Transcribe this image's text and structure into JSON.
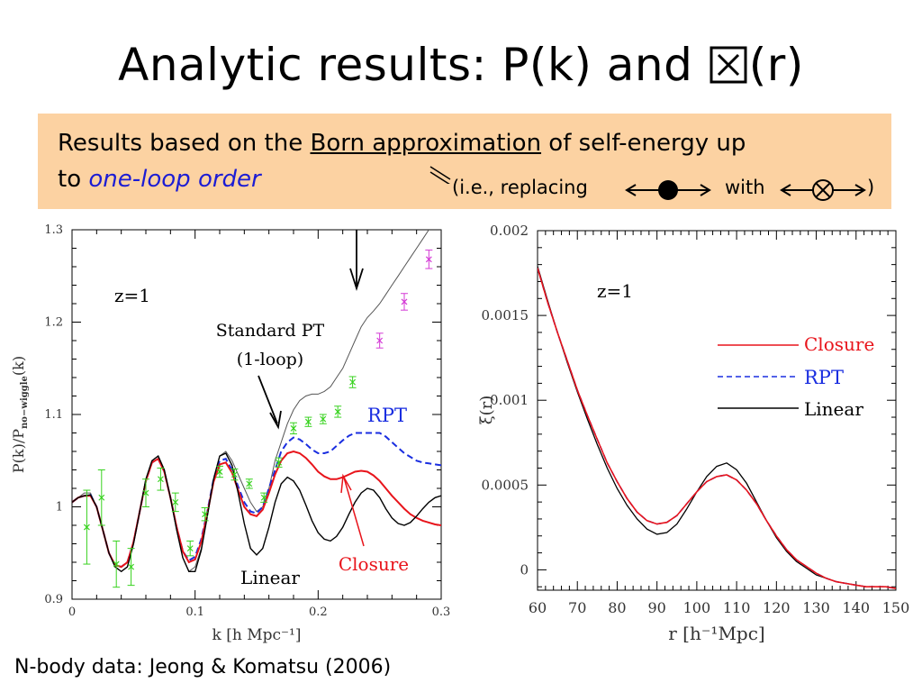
{
  "slide": {
    "title_pre": "Analytic results: P(k) and ",
    "title_post": "(r)",
    "banner": {
      "line1_a": "Results based on the ",
      "line1_underlined": "Born approximation",
      "line1_b": " of self-energy up",
      "line2_a": "to ",
      "line2_italic": "one-loop order",
      "note_a": "(i.e., replacing",
      "note_b": "with",
      "note_c": ")"
    },
    "footer": "N-body data: Jeong & Komatsu (2006)"
  },
  "colors": {
    "closure": "#e8141b",
    "rpt": "#1a2ee0",
    "linear": "#000000",
    "nbody_green": "#37d21e",
    "nbody_magenta": "#d43ad6",
    "banner_bg": "#fcd2a2",
    "italic_blue": "#1c1cd4"
  },
  "chart_data": [
    {
      "type": "line",
      "xlabel": "k [h Mpc⁻¹]",
      "ylabel": "P(k)/P",
      "ylabel_sub": "no−wiggle",
      "ylabel_tail": "(k)",
      "xlim": [
        0,
        0.3
      ],
      "ylim": [
        0.9,
        1.3
      ],
      "xticks": [
        0,
        0.1,
        0.2,
        0.3
      ],
      "xtick_labels": [
        "0",
        "0.1",
        "0.2",
        "0.3"
      ],
      "yticks": [
        0.9,
        1.0,
        1.1,
        1.2,
        1.3
      ],
      "ytick_labels": [
        "0.9",
        "1",
        "1.1",
        "1.2",
        "1.3"
      ],
      "annotations": {
        "redshift": "z=1",
        "standard_pt_1": "Standard PT",
        "standard_pt_2": "(1-loop)",
        "rpt": "RPT",
        "closure": "Closure",
        "linear": "Linear"
      },
      "series": [
        {
          "name": "Standard PT (1-loop)",
          "color": "#555555",
          "style": "solid",
          "x": [
            0,
            0.005,
            0.01,
            0.015,
            0.02,
            0.025,
            0.03,
            0.035,
            0.04,
            0.045,
            0.05,
            0.055,
            0.06,
            0.065,
            0.07,
            0.075,
            0.08,
            0.085,
            0.09,
            0.095,
            0.1,
            0.105,
            0.11,
            0.115,
            0.12,
            0.125,
            0.13,
            0.135,
            0.14,
            0.145,
            0.15,
            0.155,
            0.16,
            0.165,
            0.17,
            0.175,
            0.18,
            0.185,
            0.19,
            0.195,
            0.2,
            0.205,
            0.21,
            0.215,
            0.22,
            0.225,
            0.23,
            0.235,
            0.24,
            0.245,
            0.25,
            0.255,
            0.26,
            0.265,
            0.27,
            0.275,
            0.28,
            0.285,
            0.29,
            0.295,
            0.3
          ],
          "y": [
            1.005,
            1.01,
            1.015,
            1.015,
            1.0,
            0.975,
            0.95,
            0.935,
            0.93,
            0.935,
            0.96,
            0.995,
            1.03,
            1.05,
            1.055,
            1.04,
            1.01,
            0.975,
            0.945,
            0.93,
            0.935,
            0.955,
            0.99,
            1.03,
            1.055,
            1.06,
            1.05,
            1.035,
            1.02,
            1.005,
            0.995,
            1.0,
            1.02,
            1.05,
            1.07,
            1.09,
            1.105,
            1.115,
            1.12,
            1.122,
            1.122,
            1.125,
            1.13,
            1.14,
            1.15,
            1.165,
            1.18,
            1.195,
            1.205,
            1.212,
            1.22,
            1.23,
            1.24,
            1.25,
            1.26,
            1.27,
            1.28,
            1.29,
            1.3,
            1.305,
            1.3
          ]
        },
        {
          "name": "RPT",
          "color": "#1a2ee0",
          "style": "dashed",
          "x": [
            0,
            0.005,
            0.01,
            0.015,
            0.02,
            0.025,
            0.03,
            0.035,
            0.04,
            0.045,
            0.05,
            0.055,
            0.06,
            0.065,
            0.07,
            0.075,
            0.08,
            0.085,
            0.09,
            0.095,
            0.1,
            0.105,
            0.11,
            0.115,
            0.12,
            0.125,
            0.13,
            0.135,
            0.14,
            0.145,
            0.15,
            0.155,
            0.16,
            0.165,
            0.17,
            0.175,
            0.18,
            0.185,
            0.19,
            0.195,
            0.2,
            0.205,
            0.21,
            0.215,
            0.22,
            0.225,
            0.23,
            0.235,
            0.24,
            0.245,
            0.25,
            0.255,
            0.26,
            0.265,
            0.27,
            0.275,
            0.28,
            0.285,
            0.29,
            0.295,
            0.3
          ],
          "y": [
            1.005,
            1.01,
            1.012,
            1.013,
            1.0,
            0.975,
            0.95,
            0.937,
            0.935,
            0.94,
            0.962,
            0.995,
            1.028,
            1.048,
            1.052,
            1.038,
            1.01,
            0.978,
            0.952,
            0.942,
            0.946,
            0.965,
            0.995,
            1.03,
            1.05,
            1.052,
            1.04,
            1.022,
            1.005,
            0.995,
            0.993,
            1.0,
            1.02,
            1.04,
            1.06,
            1.07,
            1.075,
            1.073,
            1.068,
            1.062,
            1.058,
            1.058,
            1.06,
            1.066,
            1.072,
            1.077,
            1.08,
            1.08,
            1.08,
            1.08,
            1.08,
            1.076,
            1.07,
            1.064,
            1.058,
            1.054,
            1.05,
            1.048,
            1.047,
            1.046,
            1.045
          ]
        },
        {
          "name": "Closure",
          "color": "#e8141b",
          "style": "solid",
          "x": [
            0,
            0.005,
            0.01,
            0.015,
            0.02,
            0.025,
            0.03,
            0.035,
            0.04,
            0.045,
            0.05,
            0.055,
            0.06,
            0.065,
            0.07,
            0.075,
            0.08,
            0.085,
            0.09,
            0.095,
            0.1,
            0.105,
            0.11,
            0.115,
            0.12,
            0.125,
            0.13,
            0.135,
            0.14,
            0.145,
            0.15,
            0.155,
            0.16,
            0.165,
            0.17,
            0.175,
            0.18,
            0.185,
            0.19,
            0.195,
            0.2,
            0.205,
            0.21,
            0.215,
            0.22,
            0.225,
            0.23,
            0.235,
            0.24,
            0.245,
            0.25,
            0.255,
            0.26,
            0.265,
            0.27,
            0.275,
            0.28,
            0.285,
            0.29,
            0.295,
            0.3
          ],
          "y": [
            1.005,
            1.01,
            1.012,
            1.012,
            1.0,
            0.975,
            0.95,
            0.937,
            0.935,
            0.94,
            0.962,
            0.995,
            1.028,
            1.048,
            1.052,
            1.038,
            1.01,
            0.978,
            0.952,
            0.94,
            0.943,
            0.962,
            0.993,
            1.027,
            1.046,
            1.048,
            1.037,
            1.018,
            1.0,
            0.992,
            0.99,
            0.997,
            1.015,
            1.035,
            1.05,
            1.058,
            1.06,
            1.058,
            1.053,
            1.046,
            1.038,
            1.033,
            1.03,
            1.03,
            1.032,
            1.035,
            1.038,
            1.039,
            1.038,
            1.034,
            1.028,
            1.02,
            1.012,
            1.005,
            0.998,
            0.992,
            0.988,
            0.985,
            0.983,
            0.981,
            0.98
          ]
        },
        {
          "name": "Linear",
          "color": "#000000",
          "style": "solid",
          "x": [
            0,
            0.005,
            0.01,
            0.015,
            0.02,
            0.025,
            0.03,
            0.035,
            0.04,
            0.045,
            0.05,
            0.055,
            0.06,
            0.065,
            0.07,
            0.075,
            0.08,
            0.085,
            0.09,
            0.095,
            0.1,
            0.105,
            0.11,
            0.115,
            0.12,
            0.125,
            0.13,
            0.135,
            0.14,
            0.145,
            0.15,
            0.155,
            0.16,
            0.165,
            0.17,
            0.175,
            0.18,
            0.185,
            0.19,
            0.195,
            0.2,
            0.205,
            0.21,
            0.215,
            0.22,
            0.225,
            0.23,
            0.235,
            0.24,
            0.245,
            0.25,
            0.255,
            0.26,
            0.265,
            0.27,
            0.275,
            0.28,
            0.285,
            0.29,
            0.295,
            0.3
          ],
          "y": [
            1.005,
            1.01,
            1.012,
            1.013,
            1.0,
            0.975,
            0.95,
            0.935,
            0.93,
            0.935,
            0.96,
            0.995,
            1.03,
            1.05,
            1.055,
            1.04,
            1.01,
            0.975,
            0.945,
            0.93,
            0.93,
            0.953,
            0.99,
            1.03,
            1.055,
            1.058,
            1.045,
            1.015,
            0.982,
            0.955,
            0.948,
            0.955,
            0.978,
            1.005,
            1.025,
            1.032,
            1.028,
            1.018,
            1.002,
            0.985,
            0.972,
            0.965,
            0.963,
            0.968,
            0.978,
            0.992,
            1.005,
            1.015,
            1.02,
            1.018,
            1.01,
            0.998,
            0.988,
            0.982,
            0.98,
            0.983,
            0.99,
            0.998,
            1.005,
            1.01,
            1.012
          ]
        }
      ],
      "nbody_points": {
        "name": "N-body data",
        "k": [
          0.012,
          0.024,
          0.036,
          0.048,
          0.06,
          0.072,
          0.084,
          0.096,
          0.108,
          0.12,
          0.132,
          0.144,
          0.156,
          0.168,
          0.18,
          0.192,
          0.204,
          0.216,
          0.228,
          0.25,
          0.27,
          0.29
        ],
        "value": [
          0.978,
          1.01,
          0.938,
          0.935,
          1.015,
          1.03,
          1.005,
          0.955,
          0.992,
          1.038,
          1.035,
          1.025,
          1.01,
          1.048,
          1.085,
          1.092,
          1.095,
          1.103,
          1.135,
          1.18,
          1.222,
          1.268
        ],
        "error": [
          0.04,
          0.03,
          0.025,
          0.02,
          0.015,
          0.012,
          0.01,
          0.008,
          0.007,
          0.006,
          0.006,
          0.005,
          0.005,
          0.005,
          0.006,
          0.005,
          0.005,
          0.006,
          0.006,
          0.008,
          0.009,
          0.01
        ],
        "color_switch_k": 0.24
      }
    },
    {
      "type": "line",
      "xlabel": "r [h⁻¹Mpc]",
      "ylabel": "ξ(r)",
      "xlim": [
        60,
        150
      ],
      "ylim": [
        -0.00012,
        0.002
      ],
      "xticks": [
        60,
        70,
        80,
        90,
        100,
        110,
        120,
        130,
        140,
        150
      ],
      "xtick_labels": [
        "60",
        "70",
        "80",
        "90",
        "100",
        "110",
        "120",
        "130",
        "140",
        "150"
      ],
      "yticks": [
        0,
        0.0005,
        0.001,
        0.0015,
        0.002
      ],
      "ytick_labels": [
        "0",
        "0.0005",
        "0.001",
        "0.0015",
        "0.002"
      ],
      "annotations": {
        "redshift": "z=1"
      },
      "legend": [
        {
          "label": "Closure",
          "color": "#e8141b",
          "style": "solid"
        },
        {
          "label": "RPT",
          "color": "#1a2ee0",
          "style": "dashed"
        },
        {
          "label": "Linear",
          "color": "#000000",
          "style": "solid"
        }
      ],
      "series": [
        {
          "name": "Closure",
          "color": "#e8141b",
          "style": "solid",
          "x": [
            60,
            62.5,
            65,
            67.5,
            70,
            72.5,
            75,
            77.5,
            80,
            82.5,
            85,
            87.5,
            90,
            92.5,
            95,
            97.5,
            100,
            102.5,
            105,
            107.5,
            110,
            112.5,
            115,
            117.5,
            120,
            122.5,
            125,
            127.5,
            130,
            132.5,
            135,
            137.5,
            140,
            142.5,
            145,
            147.5,
            150
          ],
          "y": [
            0.00178,
            0.00158,
            0.0014,
            0.00123,
            0.00106,
            0.00091,
            0.00077,
            0.00063,
            0.00052,
            0.00042,
            0.00034,
            0.00029,
            0.00027,
            0.00028,
            0.00032,
            0.00039,
            0.00046,
            0.00052,
            0.00055,
            0.00056,
            0.00053,
            0.00047,
            0.00039,
            0.00029,
            0.0002,
            0.00012,
            6e-05,
            2e-05,
            -2e-05,
            -5e-05,
            -7e-05,
            -8e-05,
            -9e-05,
            -0.0001,
            -0.0001,
            -0.0001,
            -0.00011
          ]
        },
        {
          "name": "RPT",
          "color": "#1a2ee0",
          "style": "dashed",
          "x": [
            60,
            62.5,
            65,
            67.5,
            70,
            72.5,
            75,
            77.5,
            80,
            82.5,
            85,
            87.5,
            90,
            92.5,
            95,
            97.5,
            100,
            102.5,
            105,
            107.5,
            110,
            112.5,
            115,
            117.5,
            120,
            122.5,
            125,
            127.5,
            130,
            132.5,
            135,
            137.5,
            140,
            142.5,
            145,
            147.5,
            150
          ],
          "y": [
            0.00178,
            0.00158,
            0.0014,
            0.00123,
            0.00106,
            0.00091,
            0.00077,
            0.00063,
            0.00052,
            0.00042,
            0.00034,
            0.00029,
            0.00027,
            0.00028,
            0.00032,
            0.00039,
            0.00046,
            0.00052,
            0.00055,
            0.00056,
            0.00053,
            0.00047,
            0.00039,
            0.00029,
            0.0002,
            0.00012,
            6e-05,
            2e-05,
            -2e-05,
            -5e-05,
            -7e-05,
            -8e-05,
            -9e-05,
            -0.0001,
            -0.0001,
            -0.0001,
            -0.00011
          ]
        },
        {
          "name": "Linear",
          "color": "#000000",
          "style": "solid",
          "x": [
            60,
            62.5,
            65,
            67.5,
            70,
            72.5,
            75,
            77.5,
            80,
            82.5,
            85,
            87.5,
            90,
            92.5,
            95,
            97.5,
            100,
            102.5,
            105,
            107.5,
            110,
            112.5,
            115,
            117.5,
            120,
            122.5,
            125,
            127.5,
            130,
            132.5,
            135,
            137.5,
            140,
            142.5,
            145,
            147.5,
            150
          ],
          "y": [
            0.00179,
            0.00159,
            0.0014,
            0.00122,
            0.00105,
            0.00089,
            0.00074,
            0.0006,
            0.00048,
            0.00038,
            0.0003,
            0.00024,
            0.00021,
            0.00022,
            0.00027,
            0.00036,
            0.00046,
            0.00055,
            0.00061,
            0.00063,
            0.00059,
            0.00051,
            0.0004,
            0.00029,
            0.00019,
            0.00011,
            5e-05,
            1e-05,
            -3e-05,
            -5e-05,
            -7e-05,
            -8e-05,
            -9e-05,
            -0.0001,
            -0.0001,
            -0.0001,
            -0.00011
          ]
        }
      ]
    }
  ]
}
